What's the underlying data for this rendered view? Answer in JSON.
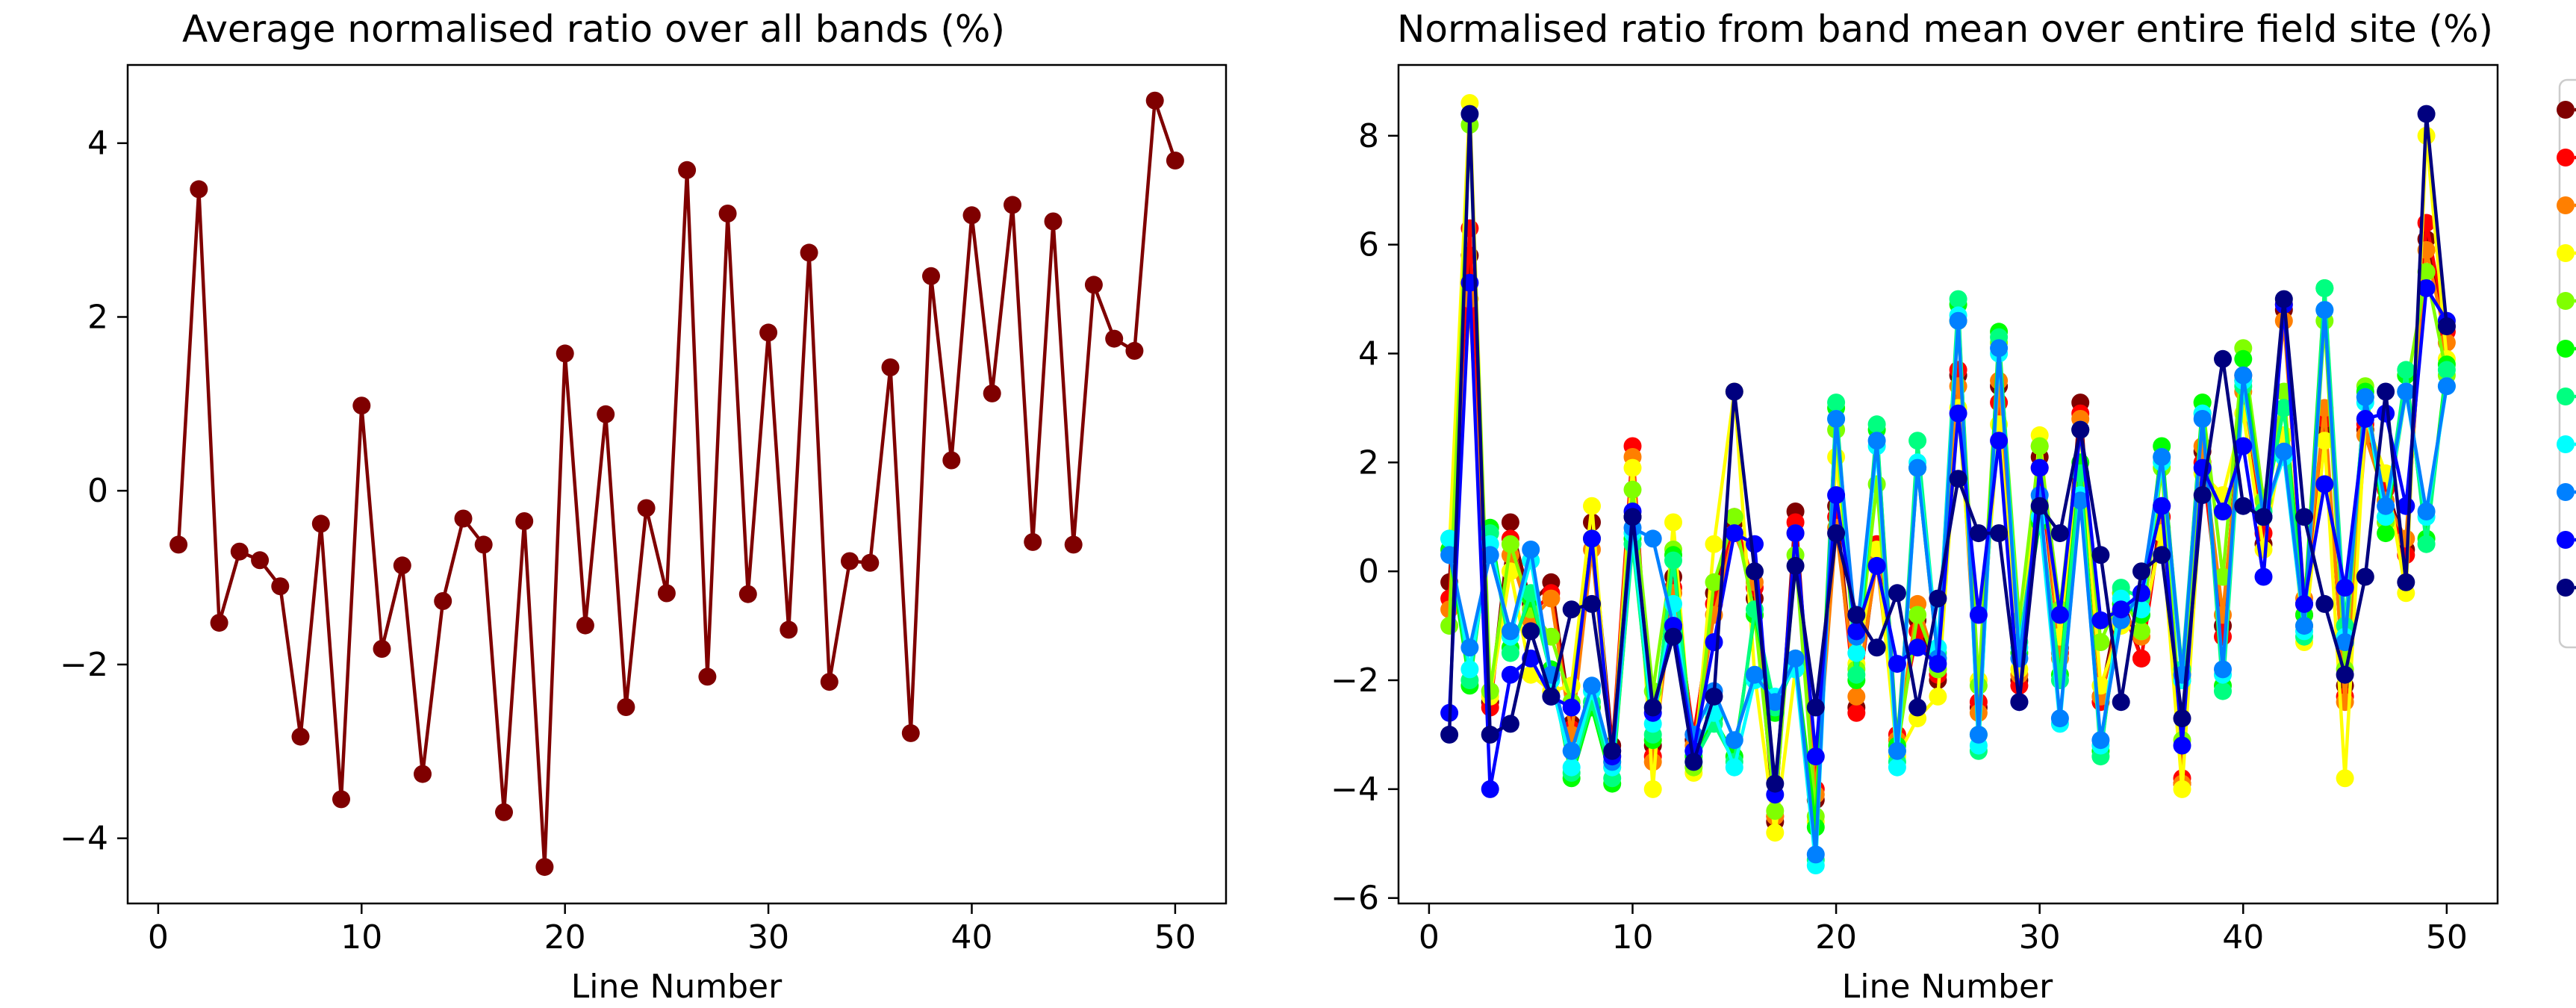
{
  "chart_data": [
    {
      "type": "line",
      "title": "Average normalised ratio over all bands (%)",
      "xlabel": "Line Number",
      "ylabel": "",
      "xlim": [
        -1.5,
        52.5
      ],
      "ylim": [
        -4.75,
        4.9
      ],
      "xticks": [
        0,
        10,
        20,
        30,
        40,
        50
      ],
      "yticks": [
        -4,
        -2,
        0,
        2,
        4
      ],
      "grid": false,
      "legend": "none",
      "x": [
        1,
        2,
        3,
        4,
        5,
        6,
        7,
        8,
        9,
        10,
        11,
        12,
        13,
        14,
        15,
        16,
        17,
        18,
        19,
        20,
        21,
        22,
        23,
        24,
        25,
        26,
        27,
        28,
        29,
        30,
        31,
        32,
        33,
        34,
        35,
        36,
        37,
        38,
        39,
        40,
        41,
        42,
        43,
        44,
        45,
        46,
        47,
        48,
        49,
        50
      ],
      "series": [
        {
          "color": "#7f0000",
          "values": [
            -0.62,
            3.47,
            -1.52,
            -0.7,
            -0.8,
            -1.1,
            -2.83,
            -0.38,
            -3.55,
            0.98,
            -1.82,
            -0.86,
            -3.26,
            -1.27,
            -0.32,
            -0.62,
            -3.7,
            -0.35,
            -4.33,
            1.58,
            -1.55,
            0.88,
            -2.49,
            -0.2,
            -1.18,
            3.69,
            -2.14,
            3.19,
            -1.19,
            1.82,
            -1.6,
            2.74,
            -2.2,
            -0.81,
            -0.83,
            1.42,
            -2.79,
            2.47,
            0.35,
            3.17,
            1.12,
            3.29,
            -0.59,
            3.1,
            -0.62,
            2.37,
            1.75,
            1.61,
            4.49,
            3.8
          ]
        }
      ]
    },
    {
      "type": "line",
      "title": "Normalised ratio from band mean over entire field site (%)",
      "xlabel": "Line Number",
      "ylabel": "",
      "xlim": [
        -1.5,
        52.5
      ],
      "ylim": [
        -6.1,
        9.3
      ],
      "xticks": [
        0,
        10,
        20,
        30,
        40,
        50
      ],
      "yticks": [
        -6,
        -4,
        -2,
        0,
        2,
        4,
        6,
        8
      ],
      "grid": false,
      "legend": "right, clipped",
      "x": [
        1,
        2,
        3,
        4,
        5,
        6,
        7,
        8,
        9,
        10,
        11,
        12,
        13,
        14,
        15,
        16,
        17,
        18,
        19,
        20,
        21,
        22,
        23,
        24,
        25,
        26,
        27,
        28,
        29,
        30,
        31,
        32,
        33,
        34,
        35,
        36,
        37,
        38,
        39,
        40,
        41,
        42,
        43,
        44,
        45,
        46,
        47,
        48,
        49,
        50
      ],
      "series": [
        {
          "color": "#800000",
          "values": [
            -0.2,
            5.8,
            -2.4,
            0.9,
            -0.6,
            -0.2,
            -2.8,
            0.9,
            -3.2,
            1.0,
            -3.2,
            -0.1,
            -3.1,
            -0.4,
            0.9,
            -0.5,
            -4.6,
            1.1,
            -4.2,
            1.2,
            -2.5,
            0.3,
            -3.1,
            -0.9,
            -2.0,
            3.6,
            -2.5,
            3.4,
            -2.0,
            2.1,
            -1.4,
            3.1,
            -2.3,
            -0.4,
            -1.6,
            1.2,
            -3.9,
            2.2,
            -1.0,
            3.6,
            0.5,
            4.8,
            -0.6,
            2.6,
            -2.1,
            2.6,
            1.6,
            0.4,
            6.1,
            4.5
          ]
        },
        {
          "color": "#ff0000",
          "values": [
            -0.5,
            6.3,
            -2.5,
            0.6,
            -0.8,
            -0.4,
            -2.9,
            0.6,
            -3.3,
            2.3,
            -3.4,
            -0.3,
            -3.0,
            -0.6,
            1.0,
            -0.3,
            -4.5,
            0.9,
            -4.0,
            1.0,
            -2.6,
            0.5,
            -3.0,
            -1.1,
            -1.9,
            3.7,
            -2.4,
            3.1,
            -2.1,
            1.9,
            -1.5,
            2.9,
            -2.4,
            -0.6,
            -1.6,
            1.0,
            -3.8,
            2.0,
            -1.2,
            3.5,
            0.7,
            4.9,
            -0.8,
            2.8,
            -2.3,
            2.7,
            1.5,
            0.3,
            6.4,
            4.4
          ]
        },
        {
          "color": "#ff7f00",
          "values": [
            -0.7,
            5.0,
            -2.2,
            0.3,
            -0.9,
            -0.5,
            -3.0,
            0.4,
            -3.4,
            2.1,
            -3.5,
            -0.4,
            -3.2,
            -0.8,
            0.7,
            -0.2,
            -4.5,
            0.7,
            -4.1,
            0.8,
            -2.3,
            0.2,
            -3.1,
            -0.6,
            -1.8,
            3.4,
            -2.6,
            3.5,
            -1.9,
            2.3,
            -1.6,
            2.8,
            -2.3,
            -0.7,
            -1.2,
            0.8,
            -3.9,
            2.3,
            -0.8,
            3.3,
            1.0,
            4.6,
            -0.5,
            3.0,
            -2.4,
            2.5,
            1.3,
            0.6,
            5.9,
            4.2
          ]
        },
        {
          "color": "#ffff00",
          "values": [
            0.4,
            8.6,
            -2.3,
            0.0,
            -1.9,
            -2.2,
            -2.1,
            1.2,
            -3.6,
            1.9,
            -4.0,
            0.9,
            -3.7,
            0.5,
            3.3,
            -1.9,
            -4.8,
            -1.8,
            -4.6,
            2.1,
            -1.7,
            0.4,
            -3.4,
            -2.7,
            -2.3,
            3.0,
            -2.0,
            2.7,
            -1.8,
            2.5,
            -1.2,
            2.6,
            -2.1,
            -1.0,
            -1.1,
            0.7,
            -4.0,
            1.8,
            1.4,
            2.9,
            0.4,
            2.5,
            -1.3,
            2.4,
            -3.8,
            2.8,
            1.8,
            -0.4,
            8.0,
            3.9
          ]
        },
        {
          "color": "#80ff00",
          "values": [
            -1.0,
            8.2,
            -2.2,
            0.5,
            -0.7,
            -1.2,
            -2.4,
            0.6,
            -3.5,
            1.5,
            -2.2,
            0.4,
            -3.6,
            -0.2,
            1.0,
            -0.8,
            -4.4,
            0.3,
            -4.5,
            2.6,
            -1.8,
            1.6,
            -3.3,
            -0.8,
            -1.8,
            4.6,
            -2.1,
            4.2,
            -0.9,
            2.3,
            -0.7,
            2.6,
            -1.3,
            -0.4,
            -1.1,
            1.9,
            -3.1,
            3.1,
            -0.1,
            4.1,
            1.3,
            3.3,
            -1.0,
            4.6,
            -1.8,
            3.4,
            0.9,
            3.3,
            5.5,
            3.6
          ]
        },
        {
          "color": "#00ff00",
          "values": [
            0.4,
            -2.1,
            0.8,
            -1.4,
            -0.5,
            -1.8,
            -3.8,
            -2.5,
            -3.9,
            0.6,
            -3.1,
            0.3,
            -3.4,
            -2.7,
            -3.4,
            -0.8,
            -2.6,
            -1.6,
            -4.7,
            3.0,
            -2.0,
            2.6,
            -3.2,
            1.9,
            -1.6,
            4.9,
            -3.0,
            4.4,
            -1.5,
            0.9,
            -1.9,
            2.0,
            -3.3,
            -0.6,
            -0.8,
            2.3,
            -2.0,
            3.1,
            -2.1,
            3.9,
            1.0,
            3.0,
            -0.8,
            5.2,
            -1.3,
            3.3,
            0.7,
            3.6,
            0.6,
            3.8
          ]
        },
        {
          "color": "#00ff80",
          "values": [
            0.6,
            -2.0,
            0.7,
            -1.5,
            -0.4,
            -1.9,
            -3.7,
            -2.4,
            -3.8,
            0.5,
            -3.0,
            0.2,
            -3.5,
            -2.8,
            -3.5,
            -0.7,
            -2.5,
            -1.7,
            -5.3,
            3.1,
            -1.9,
            2.7,
            -3.5,
            2.4,
            -1.5,
            5.0,
            -3.3,
            4.3,
            -1.3,
            1.2,
            -2.0,
            1.8,
            -3.4,
            -0.3,
            -0.5,
            2.1,
            -1.8,
            2.9,
            -2.2,
            3.4,
            1.1,
            3.0,
            -1.2,
            5.2,
            -1.0,
            3.2,
            1.0,
            3.7,
            0.5,
            3.7
          ]
        },
        {
          "color": "#00ffff",
          "values": [
            0.6,
            -1.8,
            0.5,
            -1.2,
            0.2,
            -2.0,
            -3.6,
            -2.2,
            -3.6,
            0.7,
            -2.8,
            -0.6,
            -3.3,
            -2.6,
            -3.6,
            -2.0,
            -2.3,
            -1.8,
            -5.4,
            2.8,
            -1.5,
            2.3,
            -3.6,
            2.0,
            -1.4,
            4.7,
            -3.2,
            4.0,
            -1.4,
            1.0,
            -2.8,
            1.4,
            -3.2,
            -0.5,
            -0.7,
            2.0,
            -2.0,
            2.9,
            -1.9,
            3.5,
            1.0,
            2.1,
            -1.1,
            4.8,
            -1.2,
            3.1,
            1.0,
            3.3,
            1.0,
            3.4
          ]
        },
        {
          "color": "#0080ff",
          "values": [
            0.3,
            -1.4,
            0.3,
            -1.1,
            0.4,
            -1.9,
            -3.3,
            -2.1,
            -3.5,
            0.8,
            0.6,
            -1.0,
            -3.0,
            -2.2,
            -3.1,
            -1.9,
            -2.4,
            -1.6,
            -5.2,
            2.8,
            -1.2,
            2.4,
            -3.3,
            1.9,
            -1.6,
            4.6,
            -3.0,
            4.1,
            -1.6,
            1.4,
            -2.7,
            1.3,
            -3.1,
            -0.9,
            -0.4,
            2.1,
            -1.9,
            2.8,
            -1.8,
            3.6,
            1.0,
            2.2,
            -1.0,
            4.8,
            -1.3,
            3.2,
            1.2,
            3.3,
            1.1,
            3.4
          ]
        },
        {
          "color": "#0000ff",
          "values": [
            -2.6,
            5.3,
            -4.0,
            -1.9,
            -1.6,
            -2.3,
            -2.5,
            0.6,
            -3.4,
            1.1,
            -2.6,
            -1.0,
            -3.3,
            -1.3,
            0.7,
            0.5,
            -4.1,
            0.7,
            -3.4,
            1.4,
            -1.1,
            0.1,
            -1.7,
            -1.4,
            -1.7,
            2.9,
            -0.8,
            2.4,
            -2.4,
            1.9,
            -0.8,
            2.6,
            -0.9,
            -0.7,
            -0.4,
            1.2,
            -3.2,
            1.9,
            1.1,
            2.3,
            -0.1,
            4.9,
            -0.6,
            1.6,
            -0.3,
            2.8,
            2.9,
            1.2,
            5.2,
            4.6
          ]
        },
        {
          "color": "#00007f",
          "values": [
            -3.0,
            8.4,
            -3.0,
            -2.8,
            -1.1,
            -2.3,
            -0.7,
            -0.6,
            -3.3,
            1.0,
            -2.5,
            -1.2,
            -3.5,
            -2.3,
            3.3,
            0.0,
            -3.9,
            0.1,
            -2.5,
            0.7,
            -0.8,
            -1.4,
            -0.4,
            -2.5,
            -0.5,
            1.7,
            0.7,
            0.7,
            -2.4,
            1.2,
            0.7,
            2.6,
            0.3,
            -2.4,
            0.0,
            0.3,
            -2.7,
            1.4,
            3.9,
            1.2,
            1.0,
            5.0,
            1.0,
            -0.6,
            -1.9,
            -0.1,
            3.3,
            -0.2,
            8.4,
            4.5
          ]
        }
      ]
    }
  ]
}
